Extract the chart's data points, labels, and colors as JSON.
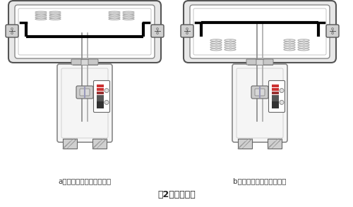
{
  "title": "图2、执行机构",
  "label_a": "a、反作用与阀构成气开式",
  "label_b": "b、正作用与阀构成气关式",
  "title_fontsize": 9,
  "label_fontsize": 7.5,
  "bg_color": "#ffffff",
  "outline_color": "#888888",
  "dark_color": "#555555",
  "body_fill": "#f0f0f0",
  "white_fill": "#ffffff",
  "spring_color": "#999999",
  "diaphragm_color": "#111111",
  "hatch_color": "#888888"
}
